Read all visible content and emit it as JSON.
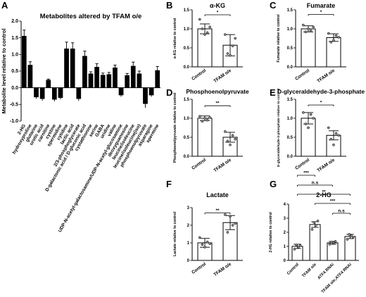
{
  "panels": {
    "A": "A",
    "B": "B",
    "C": "C",
    "D": "D",
    "E": "E",
    "F": "F",
    "G": "G"
  },
  "colors": {
    "bar_dark": "#000000",
    "bar_light": "#ffffff",
    "axis": "#000000",
    "point": "#8c8c8c"
  },
  "chart_data": [
    {
      "panel": "A",
      "type": "bar",
      "title": "Metabolites altered by TFAM o/e",
      "ylabel": "Metabolite level relative to control",
      "ylim": [
        -1.0,
        2.0
      ],
      "yticks": [
        -1.0,
        -0.5,
        0.0,
        0.5,
        1.0,
        1.5,
        2.0
      ],
      "ytick_labels": [
        "-1.0",
        "-0.5",
        "0.0",
        "0.5",
        "1.0",
        "1.5",
        "2.0"
      ],
      "categories": [
        "2-HG",
        "hydroxyproline",
        "glutarine",
        "orotic acid",
        "carnitine",
        "cystine",
        "spermidine",
        "cytidine",
        "lactic acid",
        "2/3-phosphoglycerate",
        "D-galactonic acid / D-gluconic acid",
        "cystathionine",
        "serine",
        "GABA",
        "uridine",
        "valine",
        "UDP-N-acetyl-galactosamine/UDP-N-acetyl-glucosamine",
        "deoxyguanosine",
        "leucine/isoleucine",
        "leucine/isoleucine(iso)",
        "phosphoenolpyruvate",
        "asparagine",
        "spermine"
      ],
      "values": [
        1.55,
        0.68,
        -0.28,
        -0.33,
        0.23,
        -0.35,
        -0.3,
        1.17,
        1.17,
        -0.33,
        0.95,
        0.42,
        0.62,
        0.38,
        0.4,
        0.6,
        -0.22,
        0.37,
        0.65,
        0.42,
        -0.48,
        -0.22,
        0.52
      ],
      "errors": [
        0.18,
        0.1,
        0.05,
        0.06,
        0.03,
        0.06,
        0.05,
        0.2,
        0.18,
        0.06,
        0.15,
        0.06,
        0.1,
        0.06,
        0.06,
        0.08,
        0.05,
        0.06,
        0.12,
        0.08,
        0.12,
        0.05,
        0.12
      ]
    },
    {
      "panel": "B",
      "type": "bar",
      "title": "α-KG",
      "ylabel": "α-KG relative to control",
      "ylim": [
        0.0,
        1.5
      ],
      "yticks": [
        0.0,
        0.5,
        1.0,
        1.5
      ],
      "ytick_labels": [
        "0.0",
        "0.5",
        "1.0",
        "1.5"
      ],
      "categories": [
        "Control",
        "TFAM o/e"
      ],
      "values": [
        1.0,
        0.57
      ],
      "errors": [
        0.13,
        0.28
      ],
      "points": [
        [
          1.25,
          1.0,
          0.85,
          0.9,
          1.05
        ],
        [
          0.85,
          0.35,
          0.3,
          0.55,
          0.75
        ]
      ],
      "significance": [
        {
          "from": 0,
          "to": 1,
          "label": "*",
          "y": 1.37
        }
      ]
    },
    {
      "panel": "C",
      "type": "bar",
      "title": "Fumarate",
      "ylabel": "Fumarate relative to control",
      "ylim": [
        0.0,
        1.5
      ],
      "yticks": [
        0.0,
        0.5,
        1.0,
        1.5
      ],
      "ytick_labels": [
        "0.0",
        "0.5",
        "1.0",
        "1.5"
      ],
      "categories": [
        "Control",
        "TFAM o/e"
      ],
      "values": [
        1.0,
        0.77
      ],
      "errors": [
        0.08,
        0.1
      ],
      "points": [
        [
          1.1,
          0.92,
          1.0,
          0.95,
          1.05
        ],
        [
          0.88,
          0.65,
          0.7,
          0.82,
          0.78
        ]
      ],
      "significance": [
        {
          "from": 0,
          "to": 1,
          "label": "*",
          "y": 1.38
        }
      ]
    },
    {
      "panel": "D",
      "type": "bar",
      "title": "Phosphoenolpyruvate",
      "ylabel": "Phosphoenolpyruvate relative to control",
      "ylim": [
        0.0,
        1.5
      ],
      "yticks": [
        0.0,
        0.5,
        1.0,
        1.5
      ],
      "ytick_labels": [
        "0.0",
        "0.5",
        "1.0",
        "1.5"
      ],
      "categories": [
        "Control",
        "TFAM o/e"
      ],
      "values": [
        1.0,
        0.5
      ],
      "errors": [
        0.06,
        0.13
      ],
      "points": [
        [
          1.05,
          0.92,
          1.0,
          0.95,
          1.02
        ],
        [
          0.65,
          0.4,
          0.3,
          0.55,
          0.45
        ]
      ],
      "significance": [
        {
          "from": 0,
          "to": 1,
          "label": "**",
          "y": 1.33
        }
      ]
    },
    {
      "panel": "E",
      "type": "bar",
      "title": "D-glyceraldehyde-3-phosphate",
      "ylabel": "D-glyceraldehyde-3-phosphate relative to control",
      "ylim": [
        0.0,
        1.5
      ],
      "yticks": [
        0.0,
        0.5,
        1.0,
        1.5
      ],
      "ytick_labels": [
        "0.0",
        "0.5",
        "1.0",
        "1.5"
      ],
      "categories": [
        "Control",
        "TFAM o/e"
      ],
      "values": [
        1.0,
        0.55
      ],
      "errors": [
        0.15,
        0.12
      ],
      "points": [
        [
          1.15,
          0.85,
          0.75,
          1.1,
          1.0
        ],
        [
          0.75,
          0.45,
          0.3,
          0.6,
          0.55
        ]
      ],
      "significance": [
        {
          "from": 0,
          "to": 1,
          "label": "*",
          "y": 1.35
        }
      ]
    },
    {
      "panel": "F",
      "type": "bar",
      "title": "Lactate",
      "ylabel": "Lactate relative to control",
      "ylim": [
        0,
        3
      ],
      "yticks": [
        0,
        1,
        2,
        3
      ],
      "ytick_labels": [
        "0",
        "1",
        "2",
        "3"
      ],
      "categories": [
        "Control",
        "TFAM o/e"
      ],
      "values": [
        1.0,
        2.15
      ],
      "errors": [
        0.25,
        0.4
      ],
      "points": [
        [
          1.3,
          0.9,
          0.75,
          1.05,
          0.95
        ],
        [
          2.6,
          1.6,
          2.5,
          2.0,
          2.1
        ]
      ],
      "significance": [
        {
          "from": 0,
          "to": 1,
          "label": "**",
          "y": 2.7
        }
      ]
    },
    {
      "panel": "G",
      "type": "bar",
      "title": "2-HG",
      "ylabel": "2-HG relative to control",
      "ylim": [
        0,
        4
      ],
      "yticks": [
        0,
        1,
        2,
        3,
        4
      ],
      "ytick_labels": [
        "0",
        "1",
        "2",
        "3",
        "4"
      ],
      "categories": [
        "Control",
        "TFAM o/e",
        "ATF4 RNAi",
        "TFAM o/e;ATF4 RNAi"
      ],
      "values": [
        1.0,
        2.55,
        1.25,
        1.7
      ],
      "errors": [
        0.15,
        0.2,
        0.1,
        0.15
      ],
      "points": [
        [
          0.8,
          1.1,
          0.95,
          1.05
        ],
        [
          2.2,
          2.7,
          2.5,
          2.8
        ],
        [
          1.15,
          1.3,
          1.25,
          1.35
        ],
        [
          1.5,
          1.85,
          1.75,
          1.65
        ]
      ],
      "significance": [
        {
          "from": 0,
          "to": 1,
          "label": "***",
          "y": 6.05
        },
        {
          "from": 0,
          "to": 2,
          "label": "n.s",
          "y": 5.35
        },
        {
          "from": 0,
          "to": 3,
          "label": "**",
          "y": 4.7
        },
        {
          "from": 1,
          "to": 3,
          "label": "***",
          "y": 4.05
        },
        {
          "from": 2,
          "to": 3,
          "label": "n.s",
          "y": 3.35
        }
      ]
    }
  ]
}
